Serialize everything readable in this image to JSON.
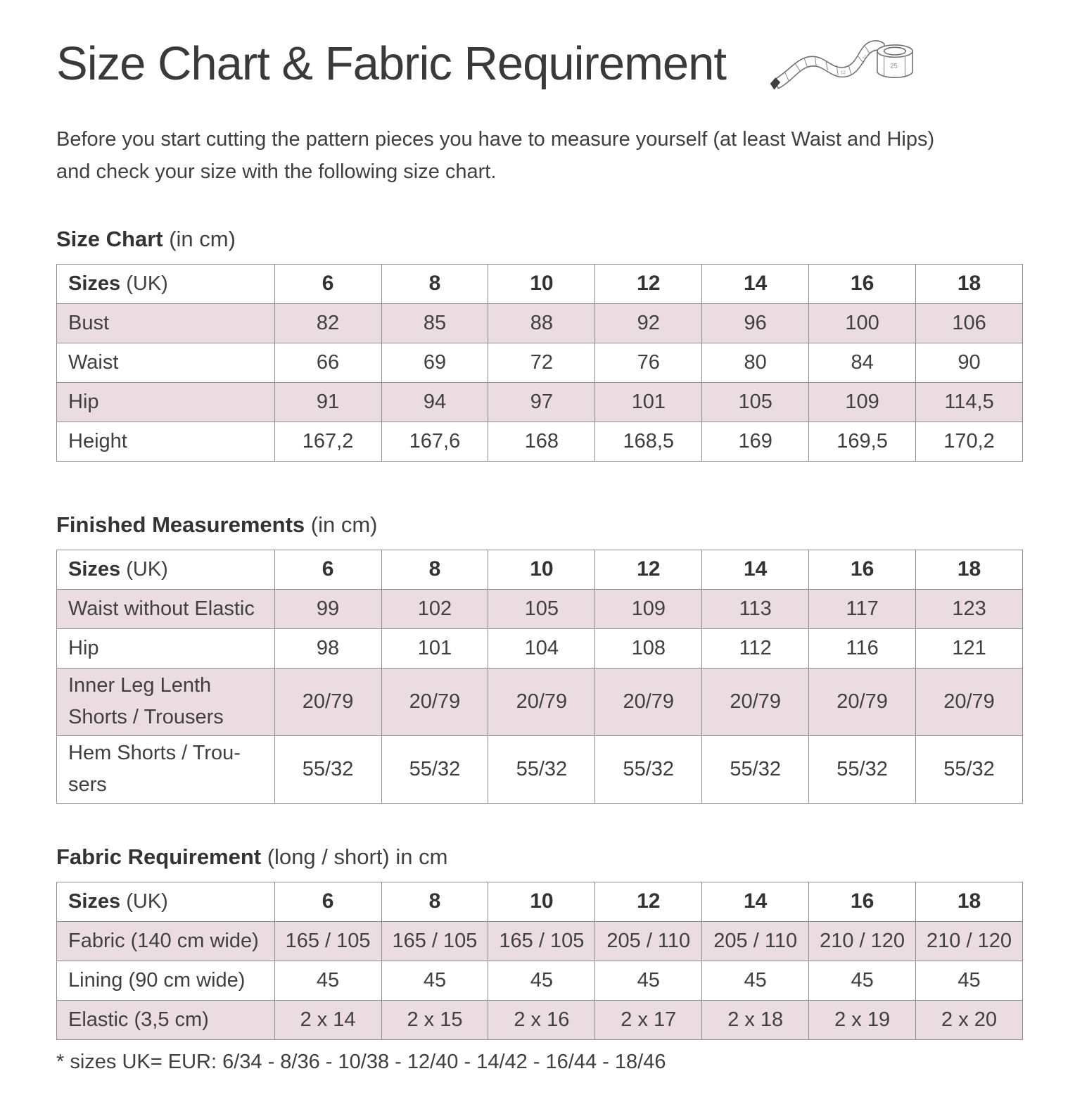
{
  "page": {
    "title": "Size Chart & Fabric Requirement",
    "intro": "Before you start cutting the pattern pieces you have to measure yourself (at least Waist and Hips)\nand check your size with the following size chart.",
    "footnote": "* sizes UK= EUR: 6/34 - 8/36 - 10/38 - 12/40 - 14/42 - 16/44 - 18/46"
  },
  "icons": {
    "measuring_tape": "measuring-tape-icon",
    "tape_numbers": [
      "12",
      "24",
      "25"
    ]
  },
  "colors": {
    "accent_row": "#ebdce2",
    "table_border": "#8d8d8d",
    "text": "#3e3e3e",
    "background": "#ffffff"
  },
  "tables": [
    {
      "heading_bold": "Size Chart",
      "heading_rest": " (in cm)",
      "header": {
        "label_bold": "Sizes",
        "label_rest": " (UK)",
        "sizes": [
          "6",
          "8",
          "10",
          "12",
          "14",
          "16",
          "18"
        ]
      },
      "rows": [
        {
          "label": "Bust",
          "shaded": true,
          "values": [
            "82",
            "85",
            "88",
            "92",
            "96",
            "100",
            "106"
          ]
        },
        {
          "label": "Waist",
          "shaded": false,
          "values": [
            "66",
            "69",
            "72",
            "76",
            "80",
            "84",
            "90"
          ]
        },
        {
          "label": "Hip",
          "shaded": true,
          "values": [
            "91",
            "94",
            "97",
            "101",
            "105",
            "109",
            "114,5"
          ]
        },
        {
          "label": "Height",
          "shaded": false,
          "values": [
            "167,2",
            "167,6",
            "168",
            "168,5",
            "169",
            "169,5",
            "170,2"
          ]
        }
      ]
    },
    {
      "heading_bold": "Finished Measurements",
      "heading_rest": " (in cm)",
      "header": {
        "label_bold": "Sizes",
        "label_rest": " (UK)",
        "sizes": [
          "6",
          "8",
          "10",
          "12",
          "14",
          "16",
          "18"
        ]
      },
      "rows": [
        {
          "label": "Waist without Elastic",
          "shaded": true,
          "values": [
            "99",
            "102",
            "105",
            "109",
            "113",
            "117",
            "123"
          ]
        },
        {
          "label": "Hip",
          "shaded": false,
          "values": [
            "98",
            "101",
            "104",
            "108",
            "112",
            "116",
            "121"
          ]
        },
        {
          "label": "Inner Leg Lenth\nShorts / Trousers",
          "shaded": true,
          "values": [
            "20/79",
            "20/79",
            "20/79",
            "20/79",
            "20/79",
            "20/79",
            "20/79"
          ]
        },
        {
          "label": "Hem Shorts / Trou-\nsers",
          "shaded": false,
          "values": [
            "55/32",
            "55/32",
            "55/32",
            "55/32",
            "55/32",
            "55/32",
            "55/32"
          ]
        }
      ]
    },
    {
      "heading_bold": "Fabric Requirement",
      "heading_rest": " (long / short) in cm",
      "header": {
        "label_bold": "Sizes",
        "label_rest": " (UK)",
        "sizes": [
          "6",
          "8",
          "10",
          "12",
          "14",
          "16",
          "18"
        ]
      },
      "rows": [
        {
          "label": " Fabric (140 cm wide)",
          "shaded": true,
          "values": [
            "165 / 105",
            "165 / 105",
            "165 / 105",
            "205 / 110",
            "205 / 110",
            "210 / 120",
            "210 / 120"
          ]
        },
        {
          "label": "Lining (90 cm wide)",
          "shaded": false,
          "values": [
            "45",
            "45",
            "45",
            "45",
            "45",
            "45",
            "45"
          ]
        },
        {
          "label": "Elastic (3,5 cm)",
          "shaded": true,
          "values": [
            "2 x 14",
            "2 x 15",
            "2 x 16",
            "2 x 17",
            "2 x 18",
            "2 x 19",
            "2 x 20"
          ]
        }
      ]
    }
  ]
}
